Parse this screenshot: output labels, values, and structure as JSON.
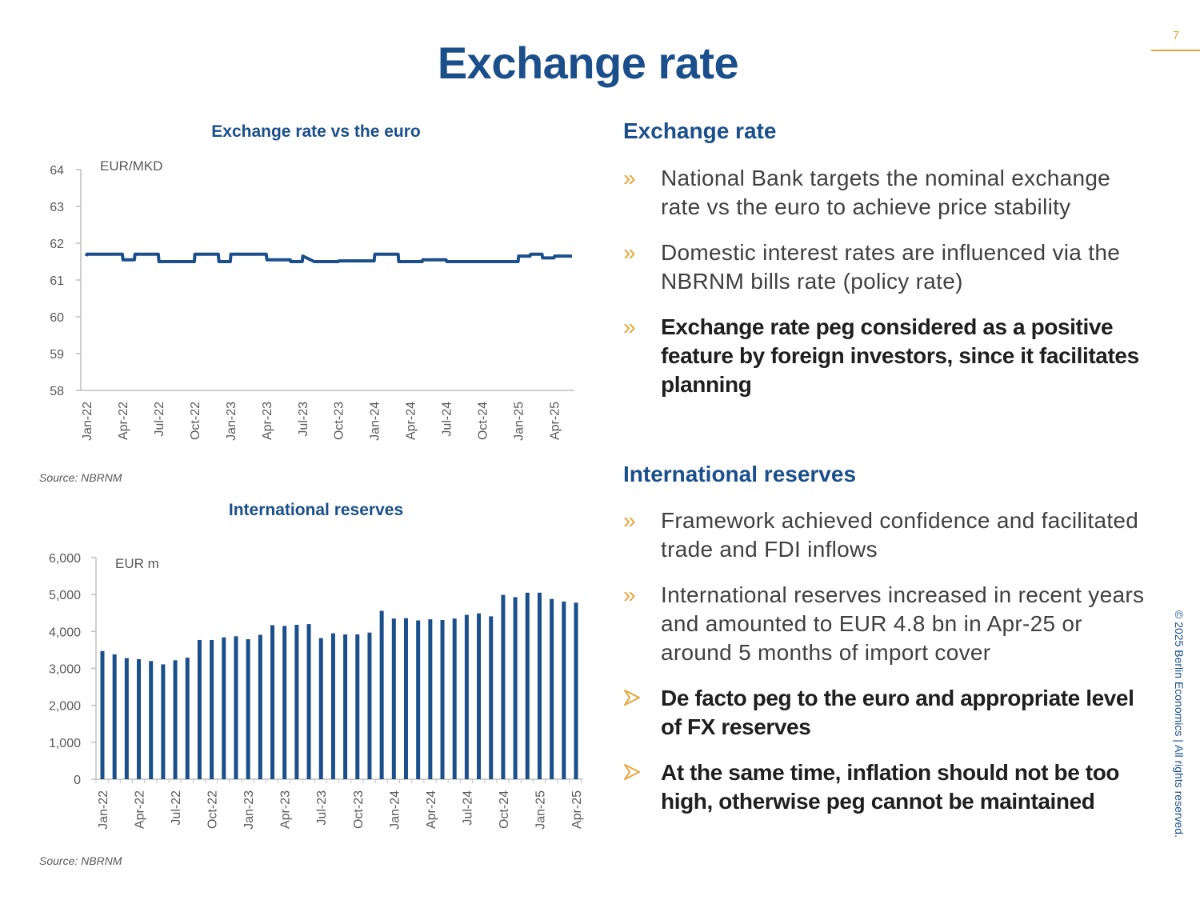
{
  "page": {
    "number": "7",
    "title": "Exchange rate",
    "copyright": "© 2025 Berlin Economics | All rights reserved."
  },
  "colors": {
    "primary": "#1a4f8b",
    "accent": "#e8a33a",
    "text": "#404040",
    "axis": "#bfbfbf"
  },
  "right_panel": {
    "exchange": {
      "heading": "Exchange rate",
      "bullets": [
        {
          "icon": "double-chevron-icon",
          "text": "National Bank targets the nominal exchange rate vs the euro to achieve price stability"
        },
        {
          "icon": "double-chevron-icon",
          "text": "Domestic interest rates are influenced via the NBRNM bills rate (policy rate)"
        },
        {
          "icon": "double-chevron-icon",
          "text": "Exchange rate peg considered as a positive feature by foreign investors, since it facilitates planning"
        }
      ]
    },
    "reserves": {
      "heading": "International reserves",
      "bullets": [
        {
          "icon": "double-chevron-icon",
          "text": "Framework achieved confidence and facilitated trade and FDI inflows"
        },
        {
          "icon": "double-chevron-icon",
          "text": "International reserves increased in recent years and amounted to EUR 4.8 bn in Apr-25 or around 5 months of import cover"
        },
        {
          "icon": "arrow-bullet-icon",
          "text": "De facto peg to the euro and appropriate level of FX reserves"
        },
        {
          "icon": "arrow-bullet-icon",
          "text": "At the same time, inflation should not be too high, otherwise peg cannot be maintained"
        }
      ]
    }
  },
  "chart_data": [
    {
      "type": "line",
      "title": "Exchange rate vs the euro",
      "unit_label": "EUR/MKD",
      "source": "Source: NBRNM",
      "color": "#1a4f8b",
      "ylim": [
        58,
        64
      ],
      "yticks": [
        "58",
        "59",
        "60",
        "61",
        "62",
        "63",
        "64"
      ],
      "x_tick_labels": [
        "Jan-22",
        "Apr-22",
        "Jul-22",
        "Oct-22",
        "Jan-23",
        "Apr-23",
        "Jul-23",
        "Oct-23",
        "Jan-24",
        "Apr-24",
        "Jul-24",
        "Oct-24",
        "Jan-25",
        "Apr-25"
      ],
      "x_range_months": [
        0,
        40.5
      ],
      "series": [
        {
          "name": "EUR/MKD",
          "month_index": [
            0,
            0.05,
            3,
            3.05,
            4,
            4.05,
            6,
            6.05,
            9,
            9.05,
            11,
            11.05,
            12,
            12.05,
            15,
            15.05,
            17,
            17.05,
            18,
            18.05,
            19,
            21,
            21.05,
            24,
            24.05,
            26,
            26.05,
            28,
            28.05,
            30,
            30.05,
            36,
            36.05,
            37,
            37.05,
            38,
            38.05,
            39,
            39.05,
            40.5
          ],
          "values": [
            61.65,
            61.7,
            61.7,
            61.55,
            61.55,
            61.7,
            61.7,
            61.5,
            61.5,
            61.7,
            61.7,
            61.5,
            61.5,
            61.7,
            61.7,
            61.55,
            61.55,
            61.5,
            61.5,
            61.65,
            61.5,
            61.5,
            61.52,
            61.52,
            61.7,
            61.7,
            61.5,
            61.5,
            61.55,
            61.55,
            61.5,
            61.5,
            61.65,
            61.65,
            61.7,
            61.7,
            61.6,
            61.6,
            61.65,
            61.65
          ]
        }
      ]
    },
    {
      "type": "bar",
      "title": "International reserves",
      "unit_label": "EUR m",
      "source": "Source: NBRNM",
      "color": "#1a4f8b",
      "ylim": [
        0,
        6000
      ],
      "yticks": [
        "0",
        "1,000",
        "2,000",
        "3,000",
        "4,000",
        "5,000",
        "6,000"
      ],
      "x_tick_labels": [
        "Jan-22",
        "Apr-22",
        "Jul-22",
        "Oct-22",
        "Jan-23",
        "Apr-23",
        "Jul-23",
        "Oct-23",
        "Jan-24",
        "Apr-24",
        "Jul-24",
        "Oct-24",
        "Jan-25",
        "Apr-25"
      ],
      "values": [
        3470,
        3380,
        3280,
        3250,
        3200,
        3110,
        3220,
        3290,
        3770,
        3770,
        3840,
        3870,
        3790,
        3910,
        4170,
        4150,
        4180,
        4200,
        3820,
        3950,
        3920,
        3920,
        3970,
        4560,
        4350,
        4360,
        4300,
        4330,
        4310,
        4350,
        4450,
        4490,
        4410,
        4990,
        4930,
        5050,
        5050,
        4880,
        4810,
        4780
      ]
    }
  ]
}
